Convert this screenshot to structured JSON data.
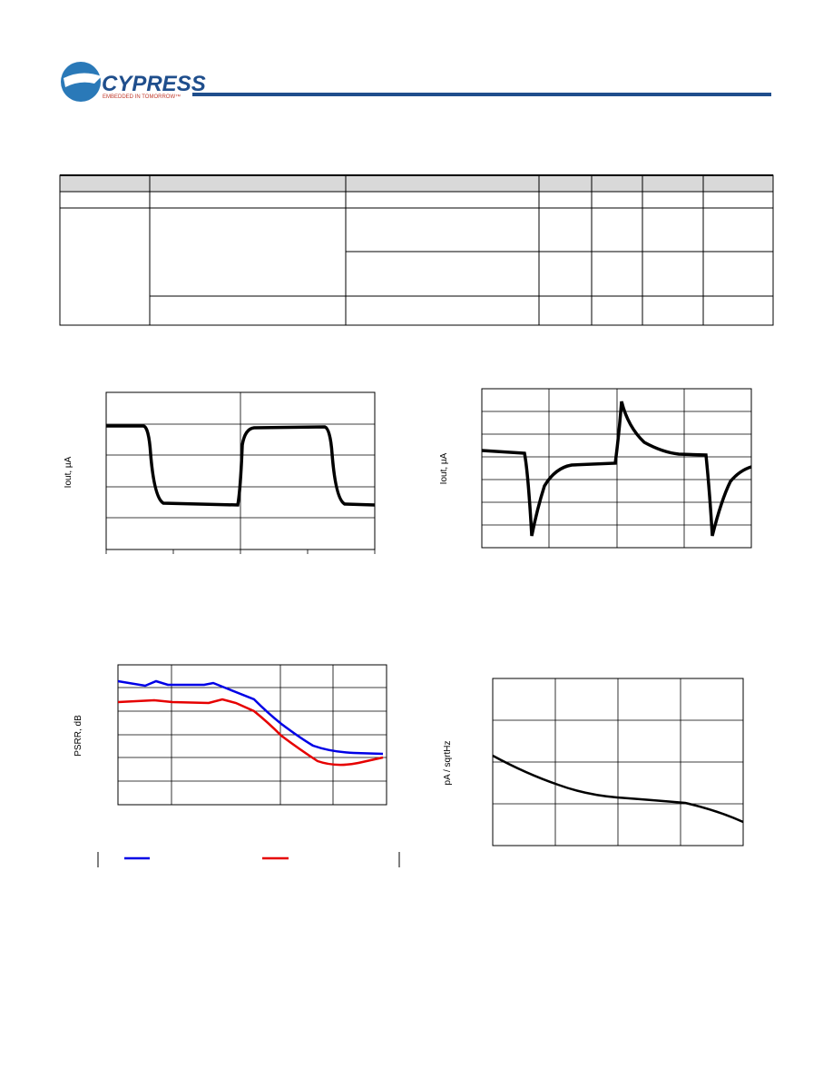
{
  "header": {
    "brand": "CYPRESS",
    "tagline": "EMBEDDED IN TOMORROW™"
  },
  "figures": [
    {
      "ylabel": "Iout, µA"
    },
    {
      "ylabel": "Iout, µA"
    },
    {
      "ylabel": "PSRR, dB"
    },
    {
      "ylabel": "pA / sqrtHz"
    }
  ]
}
